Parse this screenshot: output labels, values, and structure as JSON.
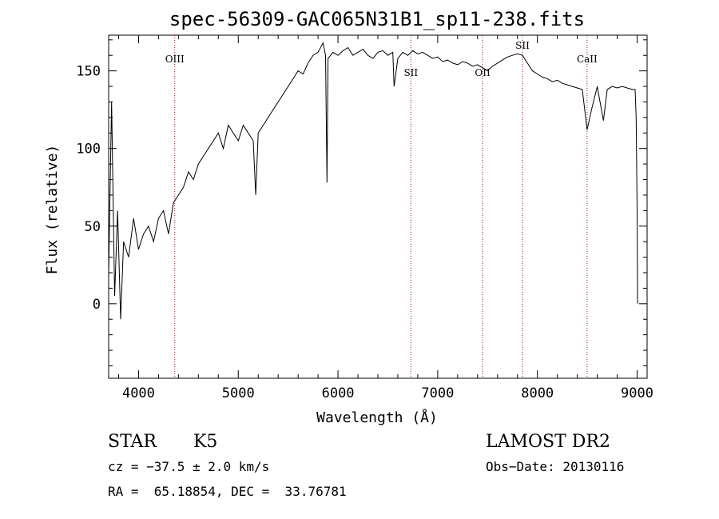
{
  "chart_data": {
    "type": "line",
    "title": "spec-56309-GAC065N31B1_sp11-238.fits",
    "xlabel": "Wavelength (Å)",
    "ylabel": "Flux (relative)",
    "xlim": [
      3700,
      9100
    ],
    "ylim": [
      -48,
      173
    ],
    "xticks": [
      4000,
      5000,
      6000,
      7000,
      8000,
      9000
    ],
    "yticks": [
      0,
      50,
      100,
      150
    ],
    "grid": false,
    "legend": "none",
    "line_color": "#000000",
    "marker_color": "#8b1a1a",
    "spectral_lines": [
      {
        "label": "OIII",
        "x": 4363
      },
      {
        "label": "SII",
        "x": 6731
      },
      {
        "label": "OII",
        "x": 7450
      },
      {
        "label": "SII",
        "x": 7850
      },
      {
        "label": "CaII",
        "x": 8498
      }
    ],
    "series": [
      {
        "x": [
          3700,
          3730,
          3760,
          3790,
          3820,
          3850,
          3900,
          3950,
          4000,
          4050,
          4100,
          4150,
          4200,
          4250,
          4300,
          4350,
          4400,
          4450,
          4500,
          4550,
          4600,
          4650,
          4700,
          4750,
          4800,
          4850,
          4900,
          4950,
          5000,
          5050,
          5100,
          5150,
          5175,
          5200,
          5250,
          5300,
          5350,
          5400,
          5450,
          5500,
          5550,
          5600,
          5650,
          5700,
          5750,
          5800,
          5850,
          5875,
          5890,
          5900,
          5950,
          6000,
          6050,
          6100,
          6150,
          6200,
          6250,
          6300,
          6350,
          6400,
          6450,
          6500,
          6550,
          6563,
          6600,
          6650,
          6700,
          6750,
          6800,
          6850,
          6900,
          6950,
          7000,
          7050,
          7100,
          7150,
          7200,
          7250,
          7300,
          7350,
          7400,
          7450,
          7500,
          7550,
          7600,
          7650,
          7700,
          7750,
          7800,
          7850,
          7900,
          7950,
          8000,
          8050,
          8100,
          8150,
          8200,
          8250,
          8300,
          8350,
          8400,
          8450,
          8498,
          8542,
          8600,
          8662,
          8700,
          8750,
          8800,
          8850,
          8900,
          8950,
          8980,
          8990,
          9000,
          9005
        ],
        "y": [
          20,
          130,
          5,
          60,
          -10,
          40,
          30,
          55,
          35,
          45,
          50,
          40,
          55,
          60,
          45,
          65,
          70,
          75,
          85,
          80,
          90,
          95,
          100,
          105,
          110,
          100,
          115,
          110,
          105,
          115,
          110,
          105,
          70,
          110,
          115,
          120,
          125,
          130,
          135,
          140,
          145,
          150,
          148,
          155,
          160,
          162,
          168,
          160,
          78,
          158,
          162,
          160,
          163,
          165,
          160,
          162,
          164,
          160,
          158,
          162,
          163,
          160,
          162,
          140,
          158,
          162,
          160,
          163,
          161,
          162,
          160,
          158,
          159,
          156,
          157,
          155,
          154,
          156,
          155,
          153,
          154,
          152,
          150,
          153,
          155,
          157,
          159,
          160,
          161,
          160,
          155,
          150,
          148,
          146,
          145,
          143,
          144,
          142,
          141,
          140,
          139,
          138,
          112,
          125,
          140,
          118,
          138,
          140,
          139,
          140,
          139,
          138,
          138,
          120,
          60,
          0
        ]
      }
    ]
  },
  "info": {
    "object_class": "STAR",
    "subclass": "K5",
    "survey": "LAMOST DR2",
    "redshift": "cz = −37.5 ± 2.0 km/s",
    "obs_date": "Obs−Date: 20130116",
    "coords": "RA =  65.18854, DEC =  33.76781"
  }
}
